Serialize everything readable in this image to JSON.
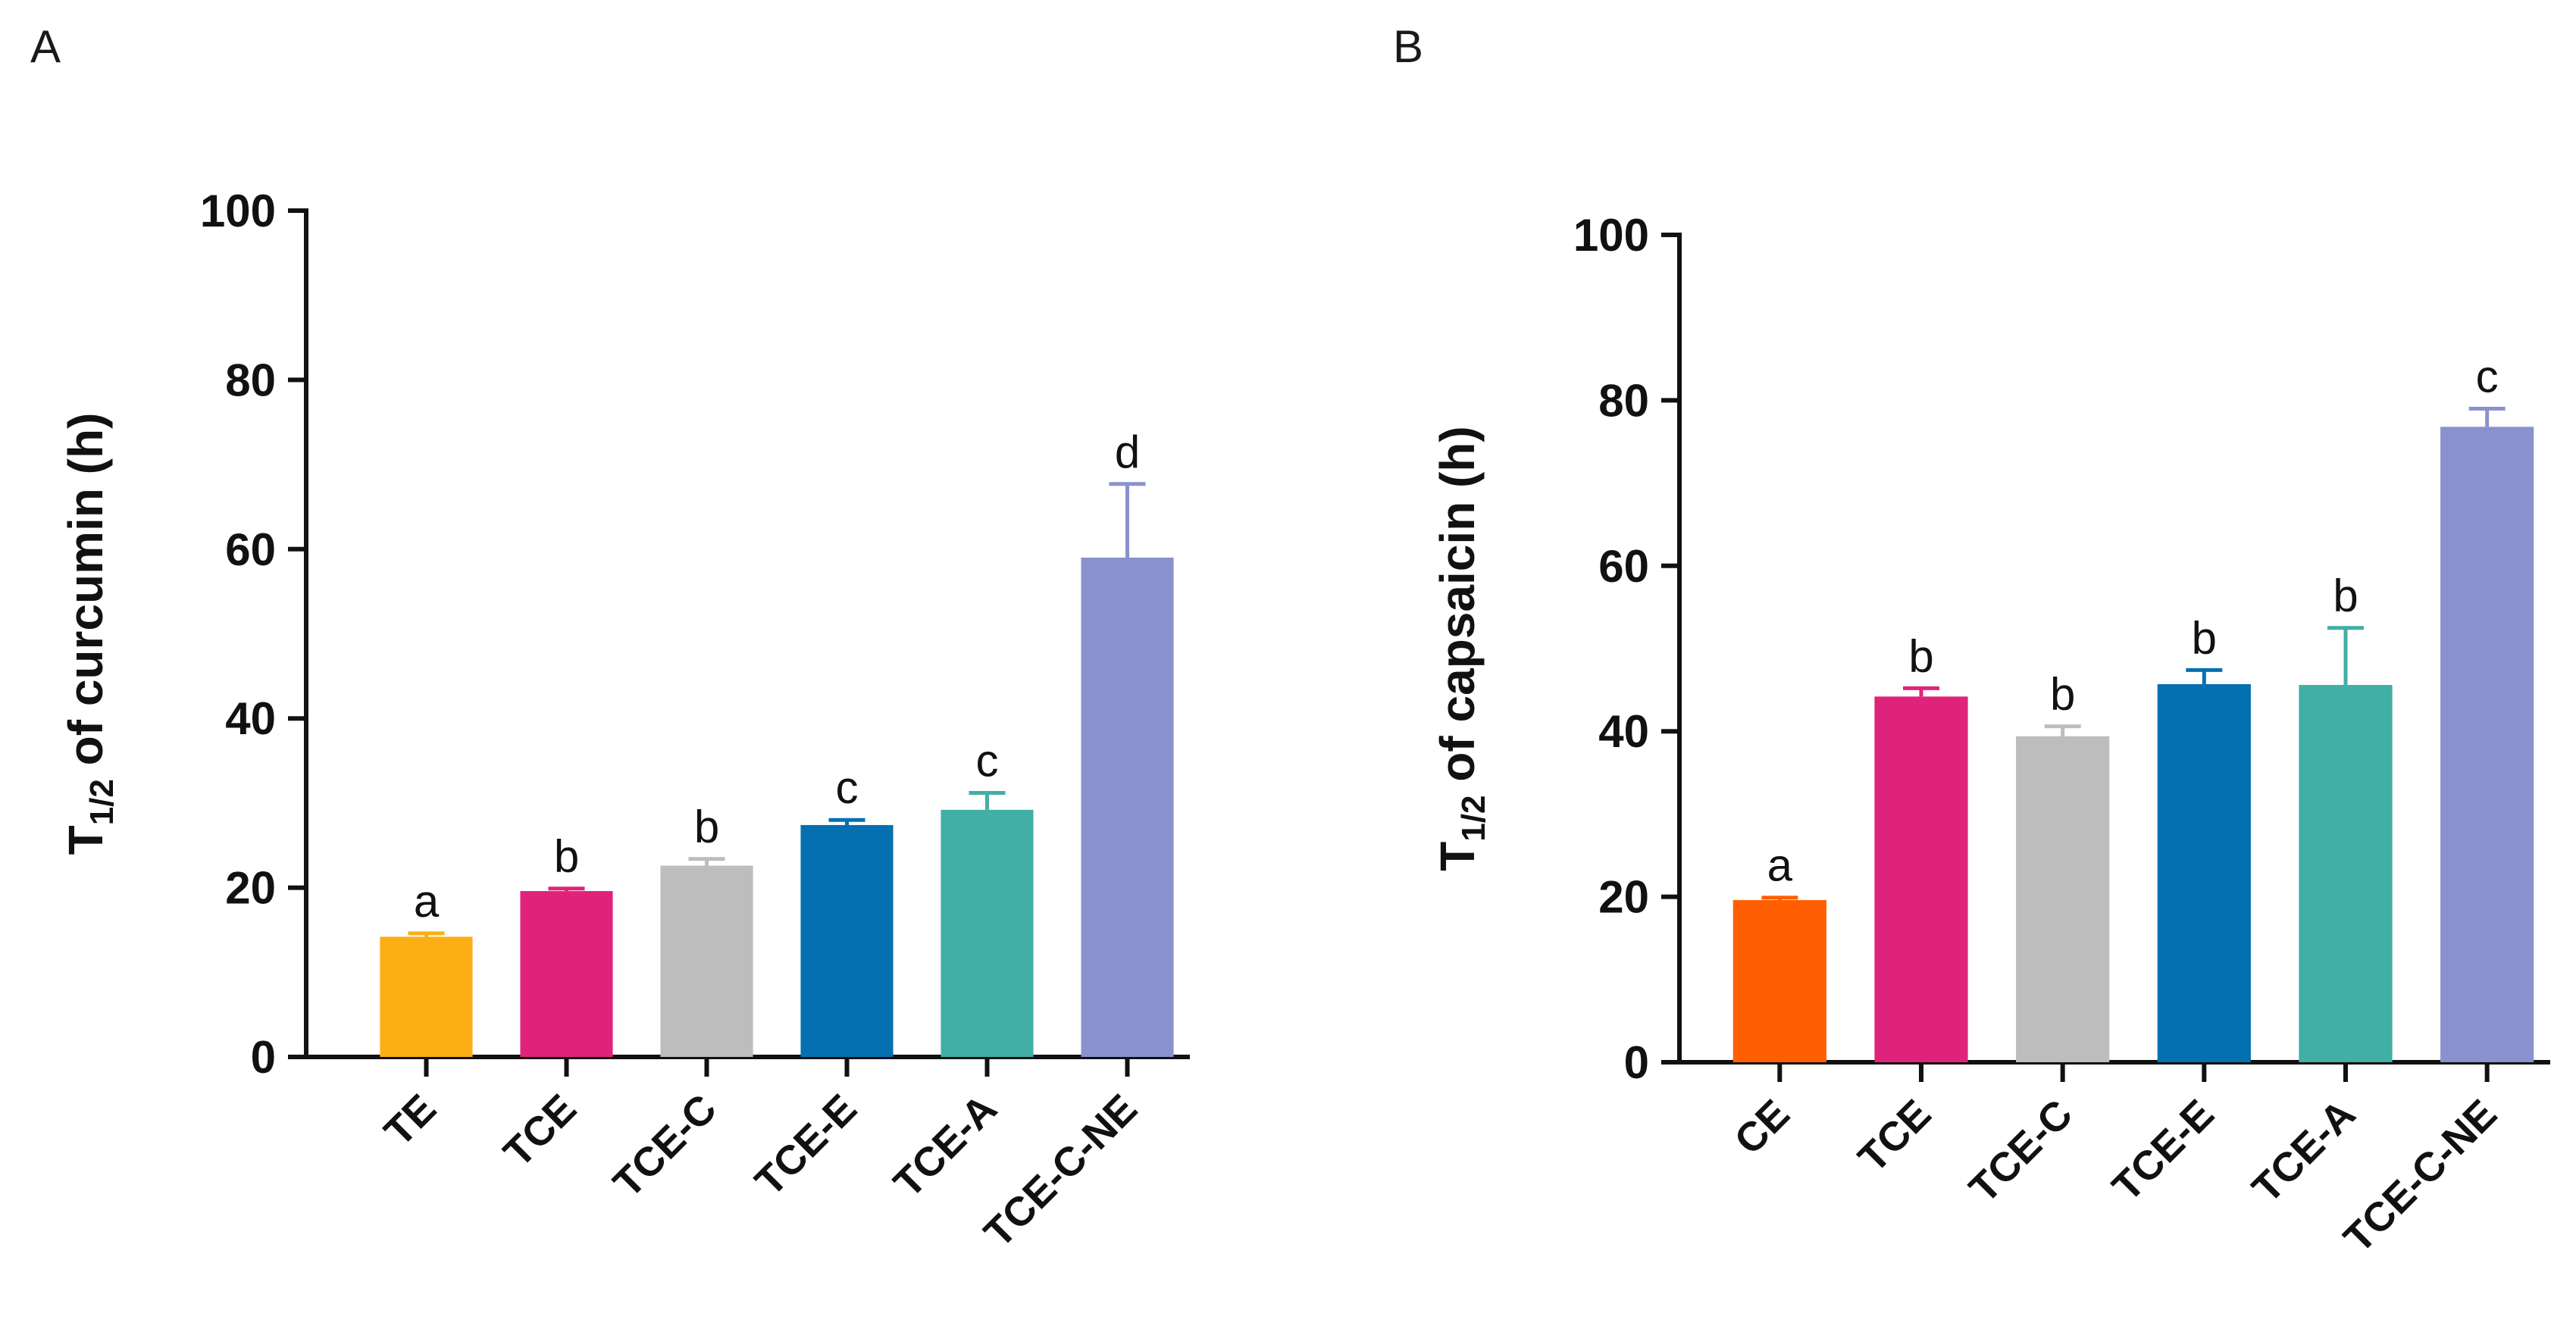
{
  "chart_data": [
    {
      "type": "bar",
      "panel": "A",
      "ylabel_main": "T",
      "ylabel_sub": "1/2",
      "ylabel_rest": " of curcumin (h)",
      "ylim": [
        0,
        100
      ],
      "yticks": [
        0,
        20,
        40,
        60,
        80,
        100
      ],
      "categories": [
        "TE",
        "TCE",
        "TCE-C",
        "TCE-E",
        "TCE-A",
        "TCE-C-NE"
      ],
      "values": [
        14.2,
        19.6,
        22.6,
        27.4,
        29.2,
        59.0
      ],
      "errors": [
        0.4,
        0.3,
        0.8,
        0.6,
        2.0,
        8.7
      ],
      "significance": [
        "a",
        "b",
        "b",
        "c",
        "c",
        "d"
      ],
      "colors": [
        "#FBAF15",
        "#E0237A",
        "#BDBDBD",
        "#0570B0",
        "#41AFA6",
        "#8A91CE"
      ]
    },
    {
      "type": "bar",
      "panel": "B",
      "ylabel_main": "T",
      "ylabel_sub": "1/2",
      "ylabel_rest": " of capsaicin (h)",
      "ylim": [
        0,
        100
      ],
      "yticks": [
        0,
        20,
        40,
        60,
        80,
        100
      ],
      "categories": [
        "CE",
        "TCE",
        "TCE-C",
        "TCE-E",
        "TCE-A",
        "TCE-C-NE"
      ],
      "values": [
        19.6,
        44.2,
        39.4,
        45.7,
        45.6,
        76.8
      ],
      "errors": [
        0.3,
        1.0,
        1.2,
        1.7,
        6.9,
        2.2
      ],
      "significance": [
        "a",
        "b",
        "b",
        "b",
        "b",
        "c"
      ],
      "colors": [
        "#FF5F00",
        "#E0237A",
        "#BDBDBD",
        "#0570B0",
        "#41AFA6",
        "#8A91CE"
      ]
    }
  ]
}
